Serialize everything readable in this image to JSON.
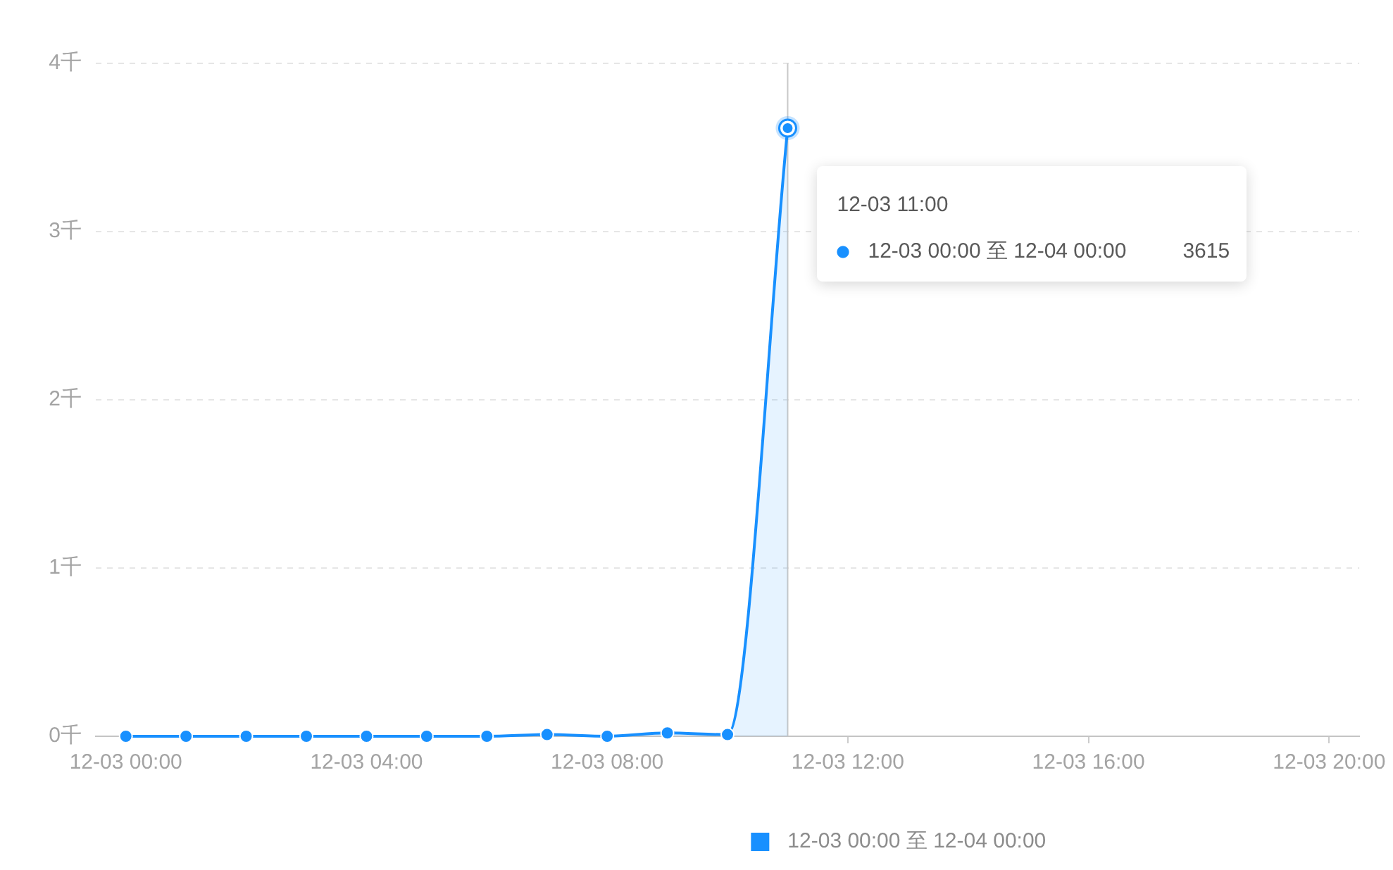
{
  "chart_data": {
    "type": "area",
    "x": [
      "--12-03T00:00",
      "--12-03T01:00",
      "--12-03T02:00",
      "--12-03T03:00",
      "--12-03T04:00",
      "--12-03T05:00",
      "--12-03T06:00",
      "--12-03T07:00",
      "--12-03T08:00",
      "--12-03T09:00",
      "--12-03T10:00",
      "--12-03T11:00"
    ],
    "series": [
      {
        "name": "12-03 00:00 至 12-04 00:00",
        "color": "#1890ff",
        "values": [
          0,
          0,
          0,
          0,
          0,
          0,
          0,
          0.01,
          0,
          0.02,
          0.01,
          3.615
        ]
      }
    ],
    "xlim": [
      "--12-02T23:30",
      "--12-03T20:30"
    ],
    "xticks": [
      {
        "value": "--12-03T00:00",
        "label": "12-03 00:00"
      },
      {
        "value": "--12-03T04:00",
        "label": "12-03 04:00"
      },
      {
        "value": "--12-03T08:00",
        "label": "12-03 08:00"
      },
      {
        "value": "--12-03T12:00",
        "label": "12-03 12:00"
      },
      {
        "value": "--12-03T16:00",
        "label": "12-03 16:00"
      },
      {
        "value": "--12-03T20:00",
        "label": "12-03 20:00"
      }
    ],
    "ylim": [
      0,
      4
    ],
    "yticks": [
      {
        "value": 0,
        "label": "0千"
      },
      {
        "value": 1,
        "label": "1千"
      },
      {
        "value": 2,
        "label": "2千"
      },
      {
        "value": 3,
        "label": "3千"
      },
      {
        "value": 4,
        "label": "4千"
      }
    ],
    "grid": "y",
    "legend": "bottom",
    "marker": "circle",
    "line_style": "solid",
    "ref_lines": [
      {
        "axis": "x",
        "value": "--12-03T11:00",
        "color": "#c8c8c8"
      }
    ],
    "annotations": [
      "12-03 11:00",
      "3615"
    ]
  }
}
